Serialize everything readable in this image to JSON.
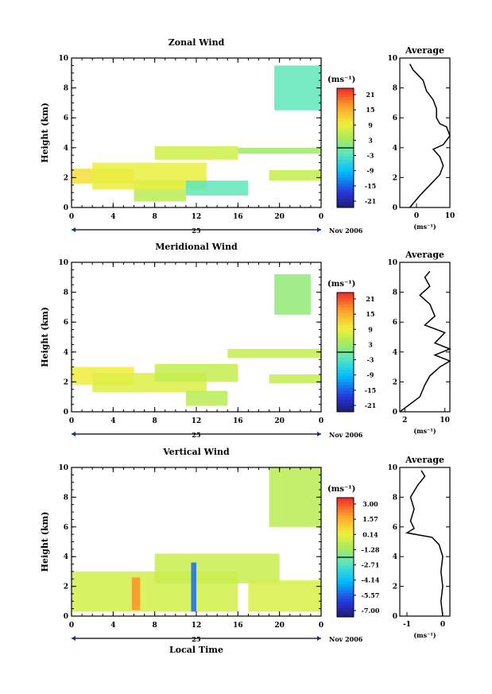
{
  "chart_data": [
    {
      "type": "heatmap",
      "title": "Zonal Wind",
      "ylabel": "Height (km)",
      "ylim": [
        0,
        10
      ],
      "yticks": [
        "0",
        "2",
        "4",
        "6",
        "8",
        "10"
      ],
      "xticks": [
        "0",
        "4",
        "8",
        "12",
        "16",
        "20",
        "0"
      ],
      "date_day": "25",
      "date_label": "Nov 2006",
      "colorbar": {
        "unit": "(ms⁻¹)",
        "labels": [
          "21",
          "15",
          "9",
          "3",
          "-3",
          "-9",
          "-15",
          "-21"
        ],
        "range": [
          -24,
          24
        ]
      },
      "average": {
        "title": "Average",
        "xlim": [
          -5,
          10
        ],
        "xticks": [
          "0",
          "10"
        ],
        "xlabel": "(ms⁻¹)",
        "profile": [
          [
            -2,
            0.0
          ],
          [
            1,
            0.8
          ],
          [
            4,
            1.5
          ],
          [
            7,
            2.2
          ],
          [
            8,
            2.8
          ],
          [
            7,
            3.4
          ],
          [
            5,
            3.9
          ],
          [
            8,
            4.2
          ],
          [
            10,
            4.8
          ],
          [
            9,
            5.4
          ],
          [
            7,
            5.6
          ],
          [
            6,
            6.0
          ],
          [
            6,
            6.6
          ],
          [
            5,
            7.2
          ],
          [
            3,
            7.8
          ],
          [
            2,
            8.5
          ],
          [
            -1,
            9.2
          ],
          [
            -2,
            9.6
          ]
        ]
      },
      "regions": [
        {
          "x": [
            0,
            6
          ],
          "y": [
            1.6,
            2.6
          ],
          "value": 11
        },
        {
          "x": [
            6,
            11
          ],
          "y": [
            0.4,
            1.8
          ],
          "value": 5
        },
        {
          "x": [
            2,
            13
          ],
          "y": [
            1.2,
            3.0
          ],
          "value": 9
        },
        {
          "x": [
            8,
            16
          ],
          "y": [
            3.2,
            4.1
          ],
          "value": 7
        },
        {
          "x": [
            11,
            17
          ],
          "y": [
            0.8,
            1.8
          ],
          "value": -2
        },
        {
          "x": [
            16,
            24
          ],
          "y": [
            3.6,
            4.0
          ],
          "value": 3
        },
        {
          "x": [
            19,
            24
          ],
          "y": [
            1.8,
            2.5
          ],
          "value": 6
        },
        {
          "x": [
            19.5,
            24
          ],
          "y": [
            6.5,
            9.5
          ],
          "value": -2
        }
      ]
    },
    {
      "type": "heatmap",
      "title": "Meridional Wind",
      "ylabel": "Height (km)",
      "ylim": [
        0,
        10
      ],
      "yticks": [
        "0",
        "2",
        "4",
        "6",
        "8",
        "10"
      ],
      "xticks": [
        "0",
        "4",
        "8",
        "12",
        "16",
        "20",
        "0"
      ],
      "date_day": "25",
      "date_label": "Nov 2006",
      "colorbar": {
        "unit": "(ms⁻¹)",
        "labels": [
          "21",
          "15",
          "9",
          "3",
          "-3",
          "-9",
          "-15",
          "-21"
        ],
        "range": [
          -24,
          24
        ]
      },
      "average": {
        "title": "Average",
        "xlim": [
          1,
          11
        ],
        "xticks": [
          "2",
          "10"
        ],
        "xlabel": "(ms⁻¹)",
        "profile": [
          [
            1,
            0.0
          ],
          [
            3,
            0.5
          ],
          [
            5,
            1.0
          ],
          [
            6,
            1.8
          ],
          [
            7,
            2.4
          ],
          [
            9,
            3.0
          ],
          [
            11,
            3.4
          ],
          [
            8,
            3.8
          ],
          [
            11,
            4.2
          ],
          [
            8,
            4.6
          ],
          [
            10,
            5.3
          ],
          [
            6,
            5.8
          ],
          [
            8,
            6.4
          ],
          [
            7,
            7.2
          ],
          [
            5,
            7.8
          ],
          [
            7,
            8.4
          ],
          [
            6,
            9.0
          ],
          [
            7,
            9.4
          ]
        ]
      },
      "regions": [
        {
          "x": [
            0,
            6
          ],
          "y": [
            1.8,
            3.0
          ],
          "value": 10
        },
        {
          "x": [
            2,
            13
          ],
          "y": [
            1.3,
            2.6
          ],
          "value": 8
        },
        {
          "x": [
            8,
            16
          ],
          "y": [
            2.0,
            3.2
          ],
          "value": 6
        },
        {
          "x": [
            15,
            24
          ],
          "y": [
            3.6,
            4.2
          ],
          "value": 6
        },
        {
          "x": [
            11,
            15
          ],
          "y": [
            0.4,
            1.4
          ],
          "value": 5
        },
        {
          "x": [
            19.5,
            23
          ],
          "y": [
            6.5,
            9.2
          ],
          "value": 2
        },
        {
          "x": [
            19,
            24
          ],
          "y": [
            1.9,
            2.5
          ],
          "value": 6
        }
      ]
    },
    {
      "type": "heatmap",
      "title": "Vertical Wind",
      "ylabel": "Height (km)",
      "xlabel": "Local Time",
      "ylim": [
        0,
        10
      ],
      "yticks": [
        "0",
        "2",
        "4",
        "6",
        "8",
        "10"
      ],
      "xticks": [
        "0",
        "4",
        "8",
        "12",
        "16",
        "20",
        "0"
      ],
      "date_day": "25",
      "date_label": "Nov 2006",
      "colorbar": {
        "unit": "(ms⁻¹)",
        "labels": [
          "3.00",
          "1.57",
          "0.14",
          "-1.28",
          "-2.71",
          "-4.14",
          "-5.57",
          "-7.00"
        ],
        "range": [
          -7.7,
          3.7
        ]
      },
      "average": {
        "title": "Average",
        "xlim": [
          -1.2,
          0.2
        ],
        "xticks": [
          "-1",
          "0"
        ],
        "xlabel": "(ms⁻¹)",
        "profile": [
          [
            0.0,
            0.0
          ],
          [
            -0.05,
            1.0
          ],
          [
            0.0,
            2.0
          ],
          [
            -0.05,
            3.0
          ],
          [
            0.0,
            4.0
          ],
          [
            -0.1,
            4.8
          ],
          [
            -0.3,
            5.3
          ],
          [
            -1.0,
            5.6
          ],
          [
            -0.8,
            5.9
          ],
          [
            -0.9,
            6.4
          ],
          [
            -0.8,
            7.2
          ],
          [
            -0.9,
            8.0
          ],
          [
            -0.7,
            8.8
          ],
          [
            -0.5,
            9.4
          ],
          [
            -0.6,
            9.8
          ]
        ]
      },
      "regions": [
        {
          "x": [
            0,
            16
          ],
          "y": [
            0.3,
            3.0
          ],
          "value": -0.3
        },
        {
          "x": [
            8,
            20
          ],
          "y": [
            2.2,
            4.2
          ],
          "value": -0.5
        },
        {
          "x": [
            5.8,
            6.6
          ],
          "y": [
            0.4,
            2.6
          ],
          "value": 2.2
        },
        {
          "x": [
            11.5,
            12.0
          ],
          "y": [
            0.3,
            3.6
          ],
          "value": -5.5
        },
        {
          "x": [
            17,
            24
          ],
          "y": [
            0.3,
            2.4
          ],
          "value": -0.2
        },
        {
          "x": [
            19,
            24
          ],
          "y": [
            6.0,
            10.0
          ],
          "value": -0.8
        }
      ]
    }
  ]
}
